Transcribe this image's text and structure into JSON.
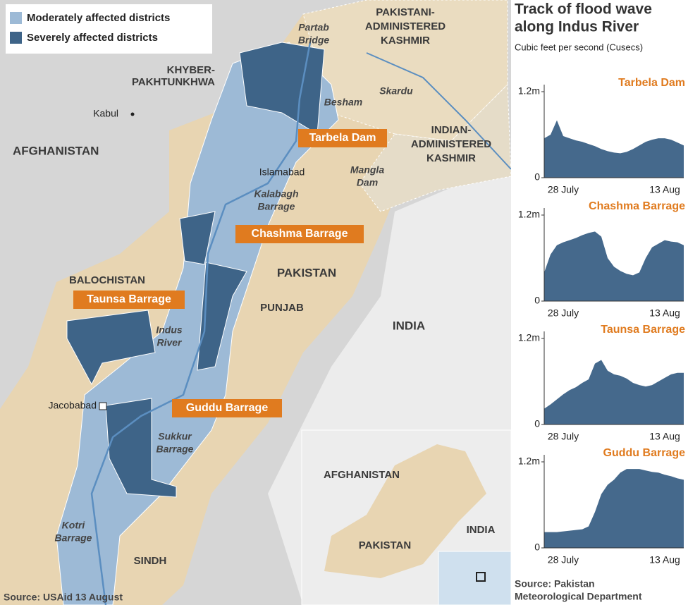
{
  "map": {
    "legend": [
      "Moderately affected districts",
      "Severely affected districts"
    ],
    "countries": [
      "AFGHANISTAN",
      "PAKISTAN",
      "INDIA"
    ],
    "regions": [
      [
        "PAKISTANI-",
        "ADMINISTERED",
        "KASHMIR"
      ],
      [
        "INDIAN-",
        "ADMINISTERED",
        "KASHMIR"
      ],
      [
        "KHYBER-",
        "PAKHTUNKHWA"
      ],
      [
        "BALOCHISTAN"
      ],
      [
        "PUNJAB"
      ],
      [
        "SINDH"
      ]
    ],
    "cities": [
      "Kabul",
      "Islamabad",
      "Jacobabad"
    ],
    "river_places": [
      [
        "Partab",
        "Bridge"
      ],
      [
        "Skardu"
      ],
      [
        "Besham"
      ],
      [
        "Mangla",
        "Dam"
      ],
      [
        "Kalabagh",
        "Barrage"
      ],
      [
        "Indus",
        "River"
      ],
      [
        "Sukkur",
        "Barrage"
      ],
      [
        "Kotri",
        "Barrage"
      ]
    ],
    "gauges": [
      "Tarbela Dam",
      "Chashma Barrage",
      "Taunsa Barrage",
      "Guddu Barrage"
    ],
    "inset": [
      "AFGHANISTAN",
      "PAKISTAN",
      "INDIA"
    ],
    "source": "Source: USAid 13 August"
  },
  "panel": {
    "title": [
      "Track of flood wave",
      "along Indus River"
    ],
    "subtitle": "Cubic feet per second (Cusecs)",
    "source": [
      "Source: Pakistan",
      "Meteorological Department"
    ]
  },
  "chart_data": [
    {
      "type": "area",
      "title": "Tarbela Dam",
      "color": "#45698c",
      "categories": [
        null,
        null,
        null,
        "28 July",
        null,
        null,
        null,
        null,
        null,
        null,
        null,
        null,
        null,
        null,
        null,
        null,
        null,
        null,
        null,
        "13 Aug",
        null,
        null,
        null
      ],
      "values": [
        550000,
        600000,
        800000,
        580000,
        550000,
        520000,
        500000,
        470000,
        440000,
        400000,
        370000,
        350000,
        340000,
        360000,
        400000,
        450000,
        500000,
        530000,
        550000,
        550000,
        530000,
        490000,
        450000
      ],
      "ylim": [
        0,
        1200000
      ],
      "yticks": [
        0,
        {
          "value": 1200000,
          "label": "1.2m"
        }
      ]
    },
    {
      "type": "area",
      "title": "Chashma Barrage",
      "color": "#45698c",
      "categories": [
        null,
        null,
        null,
        "28 July",
        null,
        null,
        null,
        null,
        null,
        null,
        null,
        null,
        null,
        null,
        null,
        null,
        null,
        null,
        null,
        "13 Aug",
        null,
        null,
        null
      ],
      "values": [
        400000,
        650000,
        780000,
        820000,
        850000,
        880000,
        920000,
        950000,
        970000,
        900000,
        600000,
        480000,
        420000,
        380000,
        360000,
        400000,
        600000,
        750000,
        800000,
        850000,
        830000,
        820000,
        780000
      ],
      "ylim": [
        0,
        1200000
      ],
      "yticks": [
        0,
        {
          "value": 1200000,
          "label": "1.2m"
        }
      ]
    },
    {
      "type": "area",
      "title": "Taunsa Barrage",
      "color": "#45698c",
      "categories": [
        null,
        null,
        null,
        "28 July",
        null,
        null,
        null,
        null,
        null,
        null,
        null,
        null,
        null,
        null,
        null,
        null,
        null,
        null,
        null,
        "13 Aug",
        null,
        null,
        null
      ],
      "values": [
        220000,
        280000,
        350000,
        420000,
        480000,
        520000,
        580000,
        630000,
        850000,
        900000,
        750000,
        700000,
        680000,
        640000,
        580000,
        550000,
        530000,
        550000,
        600000,
        650000,
        700000,
        720000,
        720000
      ],
      "ylim": [
        0,
        1200000
      ],
      "yticks": [
        0,
        {
          "value": 1200000,
          "label": "1.2m"
        }
      ]
    },
    {
      "type": "area",
      "title": "Guddu Barrage",
      "color": "#45698c",
      "categories": [
        null,
        null,
        null,
        "28 July",
        null,
        null,
        null,
        null,
        null,
        null,
        null,
        null,
        null,
        null,
        null,
        null,
        null,
        null,
        null,
        "13 Aug",
        null,
        null,
        null
      ],
      "values": [
        220000,
        220000,
        220000,
        230000,
        240000,
        250000,
        260000,
        300000,
        500000,
        750000,
        880000,
        950000,
        1050000,
        1100000,
        1100000,
        1100000,
        1080000,
        1060000,
        1050000,
        1020000,
        1000000,
        970000,
        950000
      ],
      "ylim": [
        0,
        1200000
      ],
      "yticks": [
        0,
        {
          "value": 1200000,
          "label": "1.2m"
        }
      ]
    }
  ]
}
